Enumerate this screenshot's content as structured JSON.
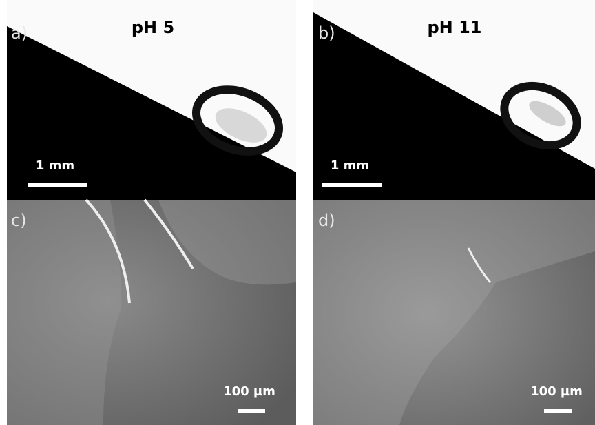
{
  "panels": [
    {
      "label": "a)",
      "title": "pH 5",
      "scale_bar": "1 mm"
    },
    {
      "label": "b)",
      "title": "pH 11",
      "scale_bar": "1 mm"
    },
    {
      "label": "c)",
      "scale_bar": "100 µm"
    },
    {
      "label": "d)",
      "scale_bar": "100 µm"
    }
  ]
}
